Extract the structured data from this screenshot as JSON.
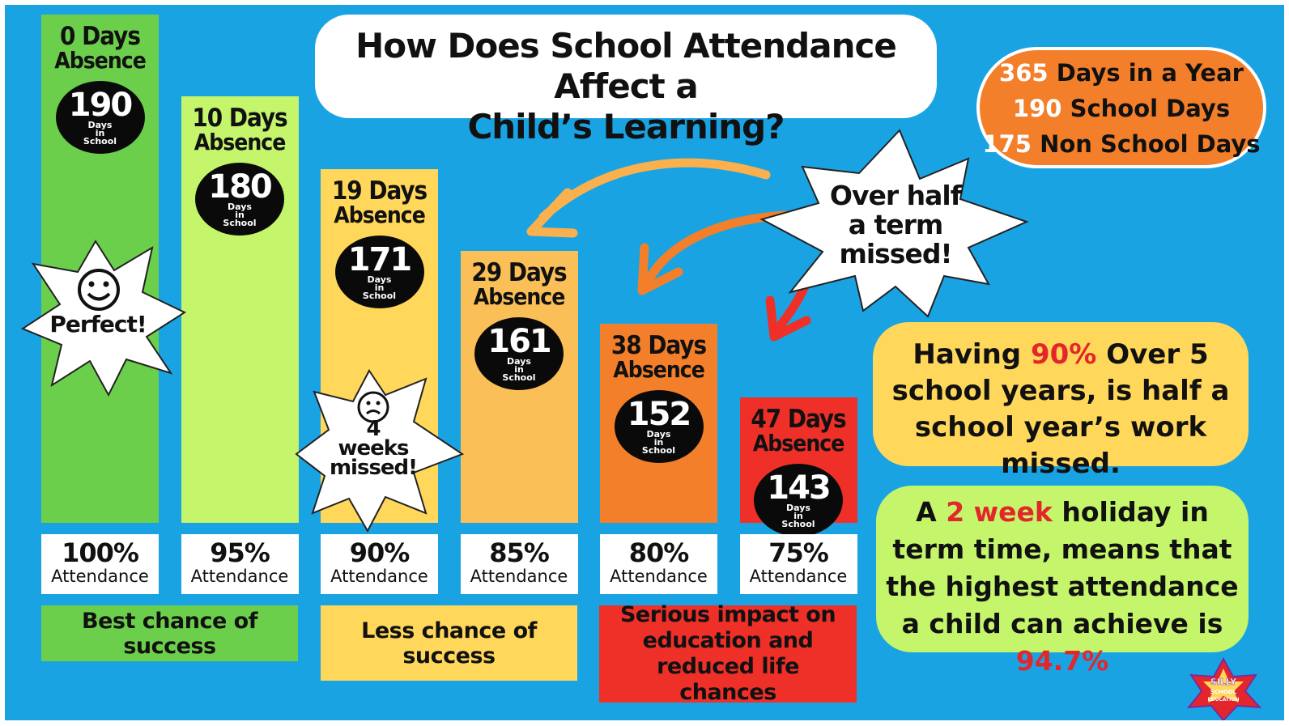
{
  "colors": {
    "background": "#1aa3e2",
    "bar_100": "#6ccf4c",
    "bar_95": "#c4f56a",
    "bar_90": "#ffd75a",
    "bar_85": "#fbbf57",
    "bar_80": "#f37f2a",
    "bar_75": "#ee3028",
    "highlight_red": "#e3262b"
  },
  "title": {
    "line1": "How Does School Attendance Affect a",
    "line2": "Child’s Learning?"
  },
  "info": {
    "row1_num": "365",
    "row1_text": "Days in a Year",
    "row2_num": "190",
    "row2_text": "School Days",
    "row3_num": "175",
    "row3_text": "Non School Days"
  },
  "chart_data": {
    "type": "bar",
    "title": "How Does School Attendance Affect a Child’s Learning?",
    "categories": [
      "100% Attendance",
      "95% Attendance",
      "90% Attendance",
      "85% Attendance",
      "80% Attendance",
      "75% Attendance"
    ],
    "series": [
      {
        "values": [
          0,
          10,
          19,
          29,
          38,
          47
        ]
      },
      {
        "values": [
          190,
          180,
          171,
          161,
          152,
          143
        ]
      }
    ],
    "bars": [
      {
        "pct": "100%",
        "attendance_label": "Attendance",
        "absence_days": 0,
        "absence_head": "0 Days",
        "absence_sub": "Absence",
        "school_days": "190",
        "badge_caption": [
          "Days",
          "in",
          "School"
        ]
      },
      {
        "pct": "95%",
        "attendance_label": "Attendance",
        "absence_days": 10,
        "absence_head": "10 Days",
        "absence_sub": "Absence",
        "school_days": "180",
        "badge_caption": [
          "Days",
          "in",
          "School"
        ]
      },
      {
        "pct": "90%",
        "attendance_label": "Attendance",
        "absence_days": 19,
        "absence_head": "19 Days",
        "absence_sub": "Absence",
        "school_days": "171",
        "badge_caption": [
          "Days",
          "in",
          "School"
        ]
      },
      {
        "pct": "85%",
        "attendance_label": "Attendance",
        "absence_days": 29,
        "absence_head": "29 Days",
        "absence_sub": "Absence",
        "school_days": "161",
        "badge_caption": [
          "Days",
          "in",
          "School"
        ]
      },
      {
        "pct": "80%",
        "attendance_label": "Attendance",
        "absence_days": 38,
        "absence_head": "38 Days",
        "absence_sub": "Absence",
        "school_days": "152",
        "badge_caption": [
          "Days",
          "in",
          "School"
        ]
      },
      {
        "pct": "75%",
        "attendance_label": "Attendance",
        "absence_days": 47,
        "absence_head": "47 Days",
        "absence_sub": "Absence",
        "school_days": "143",
        "badge_caption": [
          "Days",
          "in",
          "School"
        ]
      }
    ],
    "bands": [
      {
        "text": "Best chance of success"
      },
      {
        "text": "Less chance of success"
      },
      {
        "text": "Serious impact on education and reduced life chances"
      }
    ],
    "annotations": {
      "perfect": "Perfect!",
      "four_weeks": [
        "4",
        "weeks",
        "missed!"
      ],
      "over_half": [
        "Over half",
        "a term",
        "missed!"
      ]
    },
    "grid": false
  },
  "notes": {
    "yellow": {
      "pre": "Having ",
      "highlight": "90%",
      "post": " Over 5 school years, is half a school year’s work missed."
    },
    "green": {
      "pre": "A ",
      "highlight": "2 week",
      "post": " holiday in term time, means that the highest attendance a child can achieve is ",
      "highlight2": "94.7%"
    }
  },
  "logo": {
    "line1": "SILLY",
    "line2": "SCHOOL",
    "line3": "EDUCATION"
  }
}
